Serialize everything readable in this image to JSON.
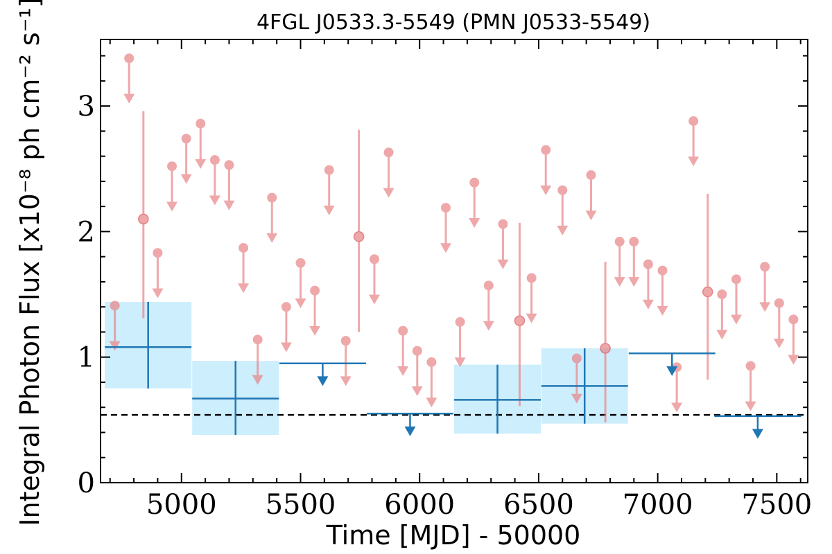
{
  "chart_data": {
    "type": "scatter",
    "title": "4FGL J0533.3-5549 (PMN J0533-5549)",
    "xlabel": "Time [MJD] - 50000",
    "ylabel": "Integral Photon Flux [x10⁻⁸ ph cm⁻² s⁻¹]",
    "xlim": [
      4660,
      7630
    ],
    "ylim": [
      0,
      3.53
    ],
    "xticks": [
      "5000",
      "5500",
      "6000",
      "6500",
      "7000",
      "7500"
    ],
    "yticks": [
      "0",
      "1",
      "2",
      "3"
    ],
    "reference_level": 0.54,
    "colors": {
      "fine_bins": "#e8878a",
      "coarse_bins": "#1f77b4",
      "band": "#cdeefc",
      "reference_line": "#000000"
    },
    "series": [
      {
        "bin_size_days": 60,
        "detections": [
          {
            "x": 4840,
            "y": 2.1,
            "yerr_low": 1.31,
            "yerr_high": 2.96
          },
          {
            "x": 5745,
            "y": 1.96,
            "yerr_low": 1.2,
            "yerr_high": 2.81
          },
          {
            "x": 6420,
            "y": 1.29,
            "yerr_low": 0.61,
            "yerr_high": 2.07
          },
          {
            "x": 6780,
            "y": 1.07,
            "yerr_low": 0.48,
            "yerr_high": 1.76
          },
          {
            "x": 7210,
            "y": 1.52,
            "yerr_low": 0.82,
            "yerr_high": 2.3
          }
        ],
        "upper_limits": [
          {
            "x": 4720,
            "y": 1.41
          },
          {
            "x": 4780,
            "y": 3.38
          },
          {
            "x": 4900,
            "y": 1.83
          },
          {
            "x": 4960,
            "y": 2.52
          },
          {
            "x": 5020,
            "y": 2.74
          },
          {
            "x": 5080,
            "y": 2.86
          },
          {
            "x": 5140,
            "y": 2.57
          },
          {
            "x": 5200,
            "y": 2.53
          },
          {
            "x": 5260,
            "y": 1.87
          },
          {
            "x": 5320,
            "y": 1.14
          },
          {
            "x": 5380,
            "y": 2.27
          },
          {
            "x": 5440,
            "y": 1.4
          },
          {
            "x": 5500,
            "y": 1.75
          },
          {
            "x": 5560,
            "y": 1.53
          },
          {
            "x": 5620,
            "y": 2.49
          },
          {
            "x": 5690,
            "y": 1.13
          },
          {
            "x": 5810,
            "y": 1.78
          },
          {
            "x": 5870,
            "y": 2.63
          },
          {
            "x": 5930,
            "y": 1.21
          },
          {
            "x": 5990,
            "y": 1.05
          },
          {
            "x": 6050,
            "y": 0.96
          },
          {
            "x": 6110,
            "y": 2.19
          },
          {
            "x": 6170,
            "y": 1.28
          },
          {
            "x": 6230,
            "y": 2.39
          },
          {
            "x": 6290,
            "y": 1.57
          },
          {
            "x": 6350,
            "y": 2.06
          },
          {
            "x": 6470,
            "y": 1.63
          },
          {
            "x": 6530,
            "y": 2.65
          },
          {
            "x": 6600,
            "y": 2.33
          },
          {
            "x": 6660,
            "y": 0.99
          },
          {
            "x": 6720,
            "y": 2.45
          },
          {
            "x": 6840,
            "y": 1.92
          },
          {
            "x": 6900,
            "y": 1.92
          },
          {
            "x": 6960,
            "y": 1.74
          },
          {
            "x": 7020,
            "y": 1.69
          },
          {
            "x": 7080,
            "y": 0.92
          },
          {
            "x": 7150,
            "y": 2.88
          },
          {
            "x": 7270,
            "y": 1.5
          },
          {
            "x": 7330,
            "y": 1.62
          },
          {
            "x": 7390,
            "y": 0.93
          },
          {
            "x": 7450,
            "y": 1.72
          },
          {
            "x": 7510,
            "y": 1.43
          },
          {
            "x": 7570,
            "y": 1.3
          }
        ]
      },
      {
        "bin_size_days": 365,
        "detections": [
          {
            "x": 4860,
            "xerr": 182,
            "y": 1.08,
            "yerr_low": 0.75,
            "yerr_high": 1.44
          },
          {
            "x": 5227,
            "xerr": 182,
            "y": 0.67,
            "yerr_low": 0.38,
            "yerr_high": 0.97
          },
          {
            "x": 6327,
            "xerr": 182,
            "y": 0.66,
            "yerr_low": 0.39,
            "yerr_high": 0.94
          },
          {
            "x": 6693,
            "xerr": 182,
            "y": 0.77,
            "yerr_low": 0.47,
            "yerr_high": 1.07
          }
        ],
        "upper_limits": [
          {
            "x": 5593,
            "xerr": 182,
            "y": 0.95
          },
          {
            "x": 5960,
            "xerr": 182,
            "y": 0.55
          },
          {
            "x": 7060,
            "xerr": 182,
            "y": 1.03
          },
          {
            "x": 7420,
            "xerr": 182,
            "y": 0.53
          }
        ]
      }
    ]
  }
}
